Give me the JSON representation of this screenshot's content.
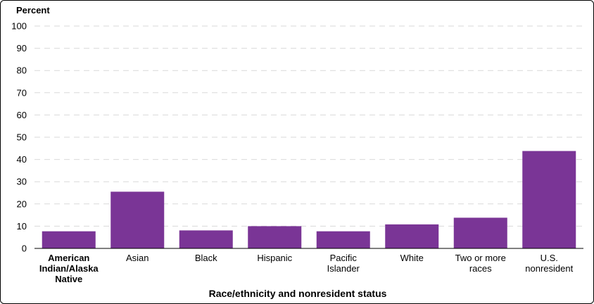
{
  "chart_data": {
    "type": "bar",
    "ylabel": "Percent",
    "xlabel": "Race/ethnicity and nonresident status",
    "ylim": [
      0,
      100
    ],
    "yticks": [
      0,
      10,
      20,
      30,
      40,
      50,
      60,
      70,
      80,
      90,
      100
    ],
    "grid": true,
    "bar_color": "#7a3596",
    "categories": [
      [
        "American",
        "Indian/Alaska",
        "Native"
      ],
      [
        "Asian"
      ],
      [
        "Black"
      ],
      [
        "Hispanic"
      ],
      [
        "Pacific",
        "Islander"
      ],
      [
        "White"
      ],
      [
        "Two or more",
        "races"
      ],
      [
        "U.S.",
        "nonresident"
      ]
    ],
    "highlighted_category_index": 0,
    "values": [
      7.7,
      25.5,
      8.1,
      10.0,
      7.7,
      10.8,
      13.8,
      43.8
    ]
  }
}
